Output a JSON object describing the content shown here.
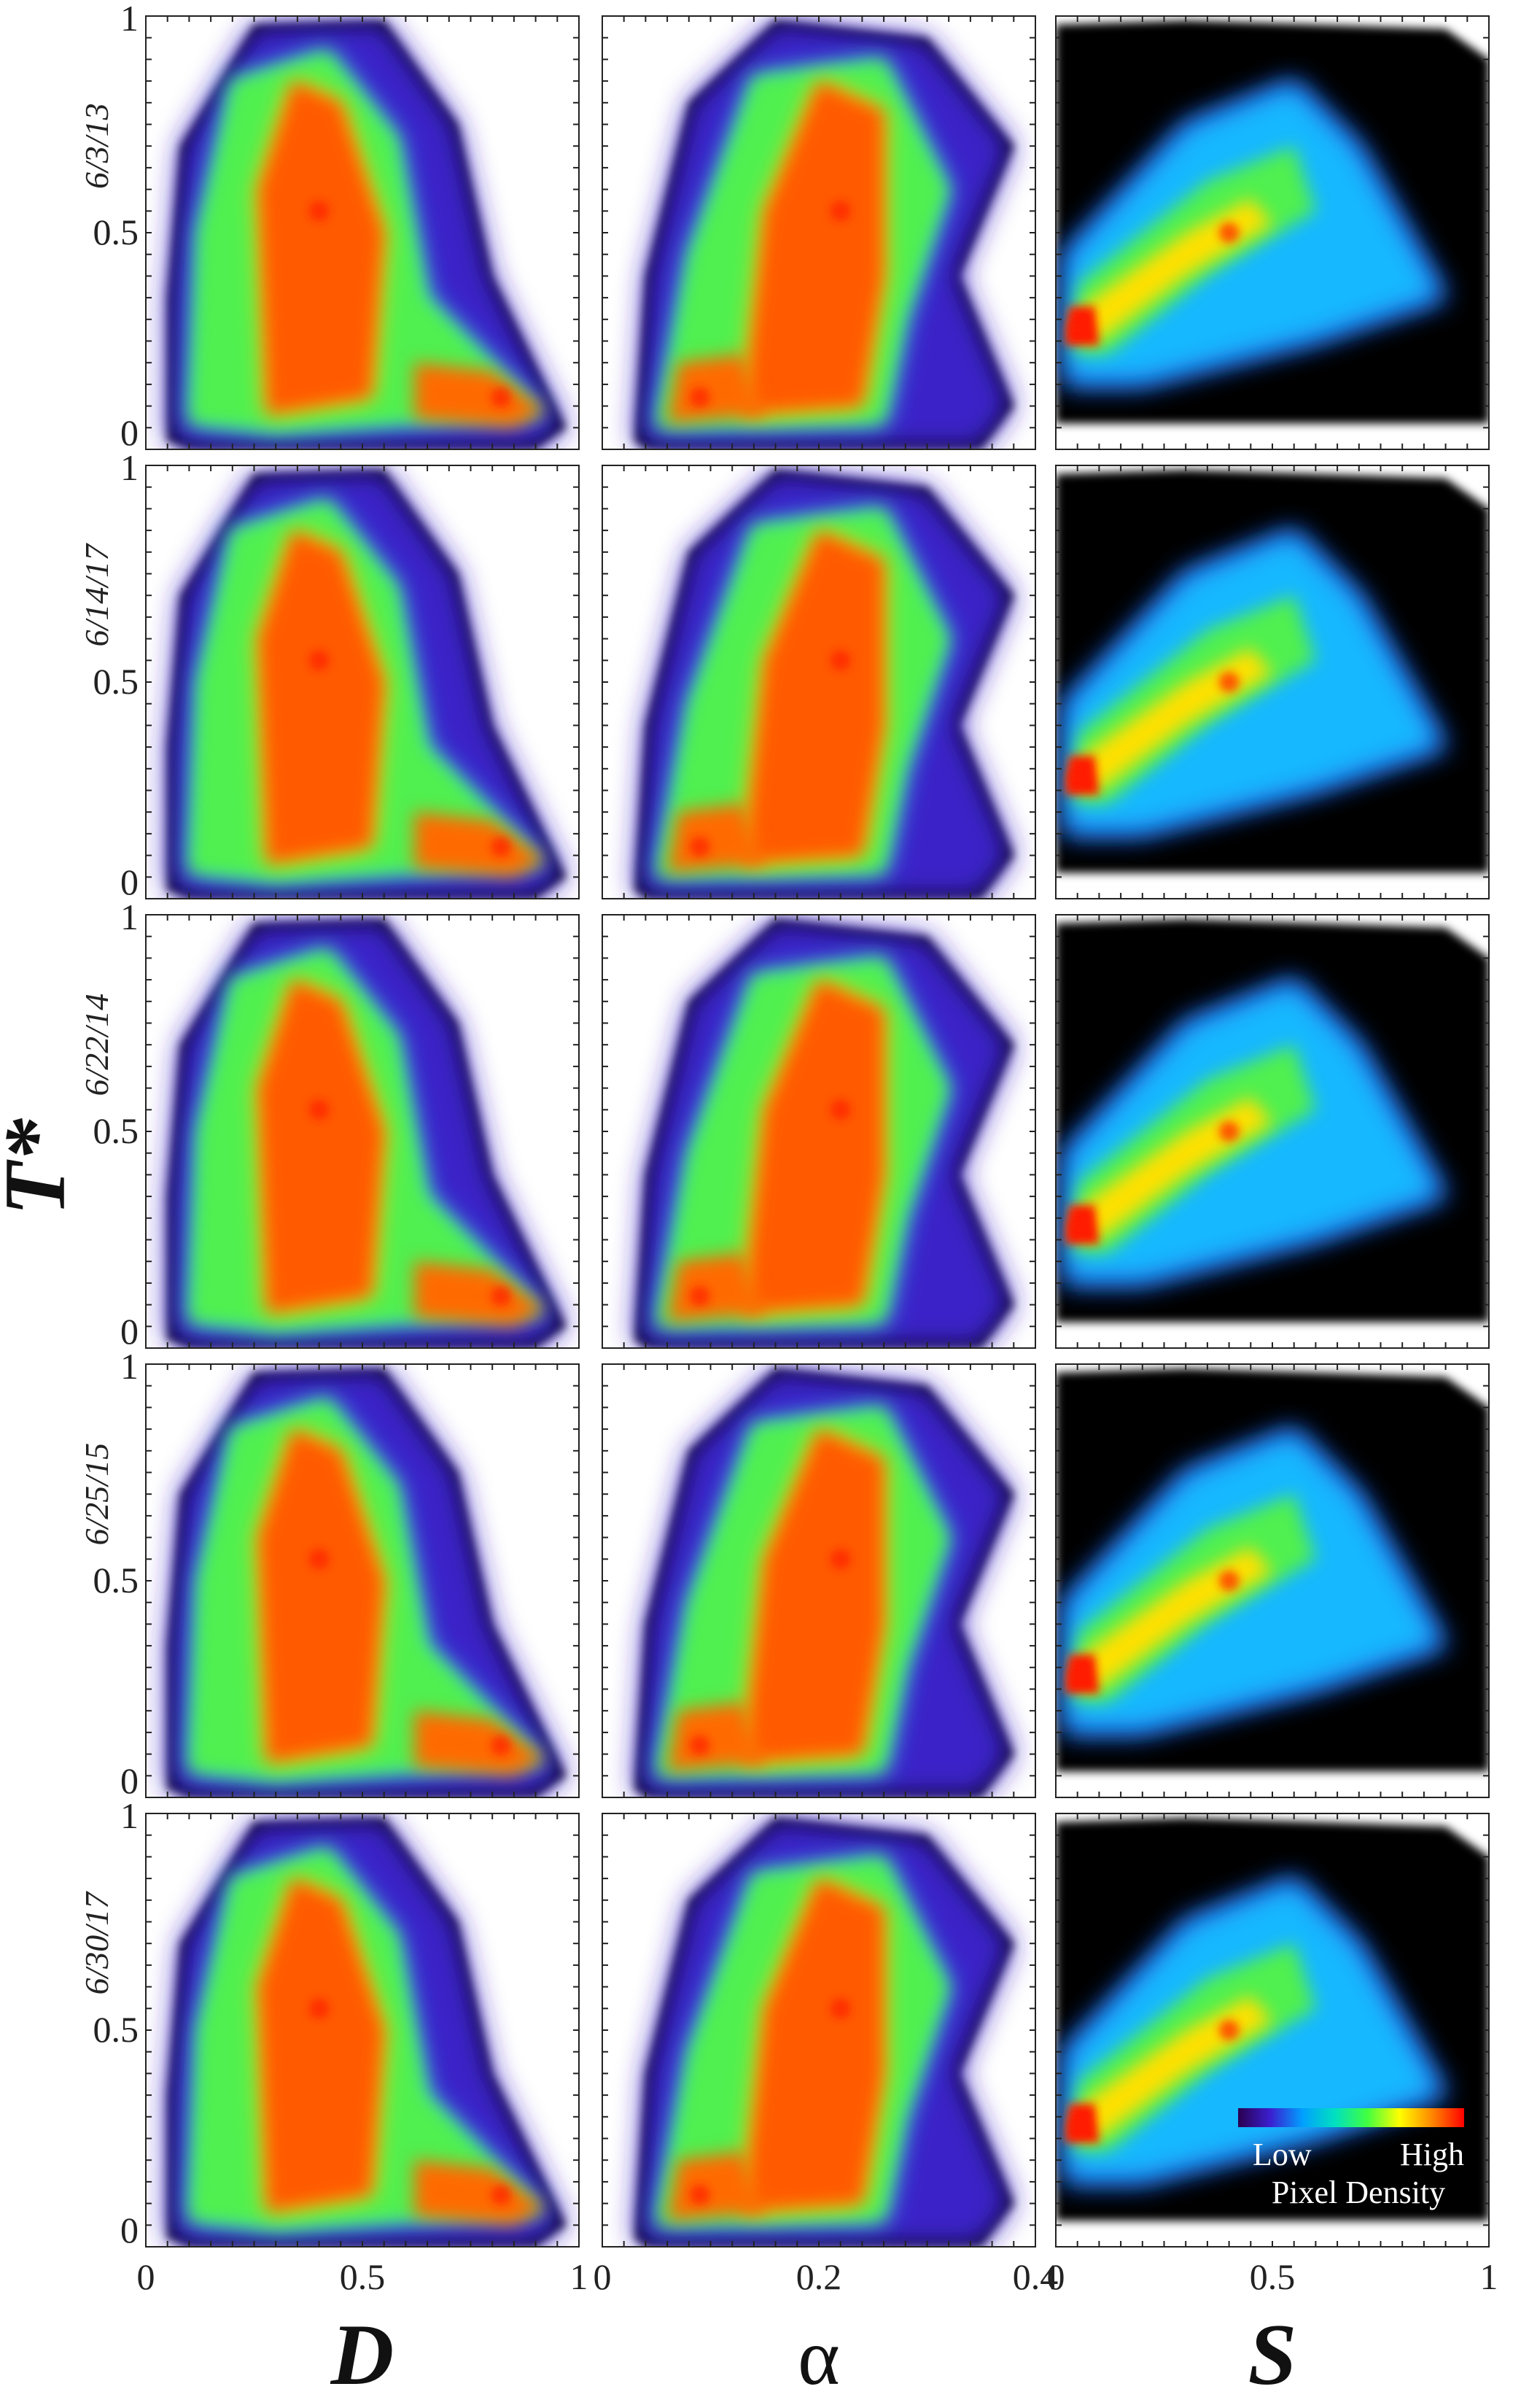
{
  "chart_data": {
    "type": "heatmap",
    "layout": {
      "rows": 5,
      "columns": 3
    },
    "row_labels": [
      "6/3/13",
      "6/14/17",
      "6/22/14",
      "6/25/15",
      "6/30/17"
    ],
    "columns": [
      {
        "xlabel": "D",
        "xlim": [
          0,
          1
        ],
        "xticks": [
          "0",
          "0.5",
          "1"
        ]
      },
      {
        "xlabel": "α",
        "xlim": [
          0,
          0.4
        ],
        "xticks": [
          "0",
          "0.2",
          "0.4"
        ]
      },
      {
        "xlabel": "S",
        "xlim": [
          0,
          1
        ],
        "xticks": [
          "0",
          "0.5",
          "1"
        ]
      }
    ],
    "ylabel": "T*",
    "ylim": [
      0,
      1
    ],
    "yticks": [
      "0",
      "0.5",
      "1"
    ],
    "colorbar": {
      "label": "Pixel Density",
      "low_label": "Low",
      "high_label": "High",
      "colormap": [
        "#2a004f",
        "#3b1fd0",
        "#00a0ff",
        "#00e0c0",
        "#40ff40",
        "#ffff00",
        "#ff8800",
        "#ff0000"
      ]
    },
    "density_modes": {
      "D": [
        {
          "x": 0.4,
          "y": 0.55
        },
        {
          "x": 0.82,
          "y": 0.12
        }
      ],
      "alpha": [
        {
          "x": 0.22,
          "y": 0.55
        },
        {
          "x": 0.09,
          "y": 0.12
        }
      ],
      "S": [
        {
          "x": 0.05,
          "y": 0.28
        },
        {
          "x": 0.4,
          "y": 0.5
        }
      ]
    }
  }
}
